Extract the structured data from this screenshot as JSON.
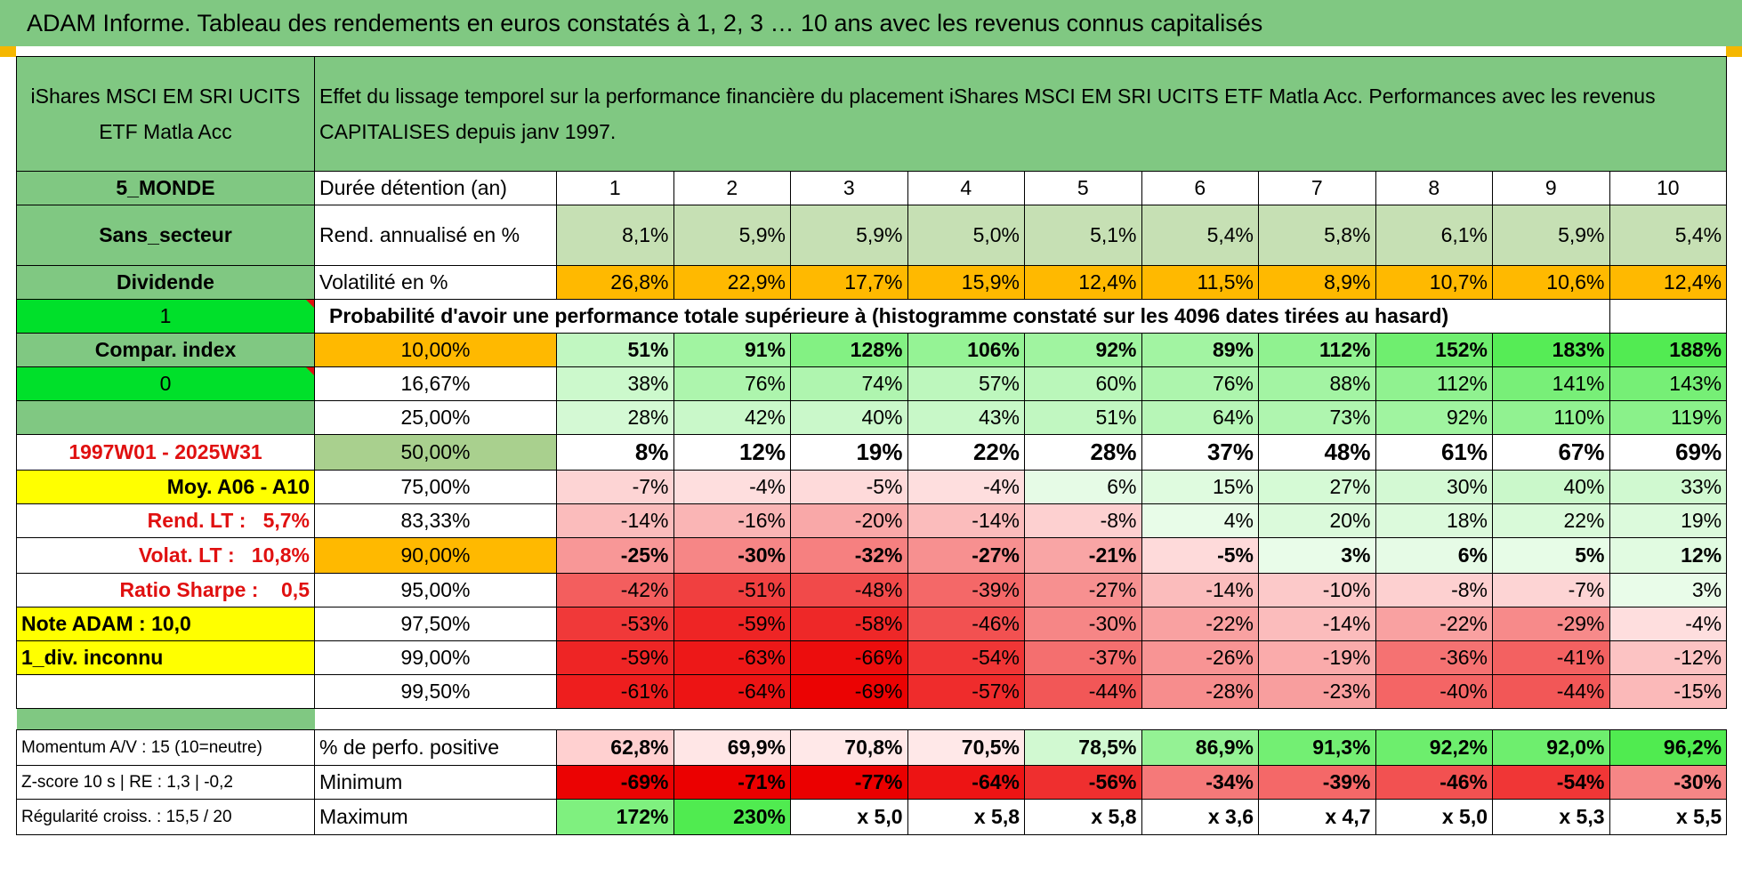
{
  "title": "ADAM Informe. Tableau des rendements en euros constatés à 1, 2, 3 … 10 ans avec les revenus connus capitalisés",
  "fund_name": "iShares MSCI EM SRI UCITS ETF Matla Acc",
  "header_desc": "Effet du lissage temporel sur la performance financière du placement iShares MSCI EM SRI UCITS ETF Matla Acc. Performances avec les revenus CAPITALISES depuis janv 1997.",
  "left_labels": {
    "region": "5_MONDE",
    "sector": "Sans_secteur",
    "dividend": "Dividende",
    "flag1": "1",
    "compar": "Compar. index",
    "flag0": "0",
    "period": "1997W01 - 2025W31",
    "moy": "Moy. A06 - A10",
    "rend_lt": "Rend. LT :   5,7%",
    "volat_lt": "Volat. LT :   10,8%",
    "sharpe": "Ratio Sharpe :    0,5",
    "note": "Note ADAM : 10,0",
    "div": "1_div. inconnu",
    "momentum": "Momentum A/V : 15 (10=neutre)",
    "zscore": "Z-score 10 s | RE : 1,3 | -0,2",
    "regularite": "Régularité croiss. : 15,5 / 20"
  },
  "row_labels": {
    "duree": "Durée détention (an)",
    "rend": "Rend. annualisé en %",
    "volat": "Volatilité en %",
    "proba": "Probabilité d'avoir une performance totale supérieure à (histogramme constaté sur les 4096 dates tirées au hasard)",
    "positive": "% de perfo. positive",
    "minimum": "Minimum",
    "maximum": "Maximum"
  },
  "years": [
    "1",
    "2",
    "3",
    "4",
    "5",
    "6",
    "7",
    "8",
    "9",
    "10"
  ],
  "rend": [
    "8,1%",
    "5,9%",
    "5,9%",
    "5,0%",
    "5,1%",
    "5,4%",
    "5,8%",
    "6,1%",
    "5,9%",
    "5,4%"
  ],
  "volat": [
    "26,8%",
    "22,9%",
    "17,7%",
    "15,9%",
    "12,4%",
    "11,5%",
    "8,9%",
    "10,7%",
    "10,6%",
    "12,4%"
  ],
  "quantiles": [
    {
      "p": "10,00%",
      "v": [
        "51%",
        "91%",
        "128%",
        "106%",
        "92%",
        "89%",
        "112%",
        "152%",
        "183%",
        "188%"
      ]
    },
    {
      "p": "16,67%",
      "v": [
        "38%",
        "76%",
        "74%",
        "57%",
        "60%",
        "76%",
        "88%",
        "112%",
        "141%",
        "143%"
      ]
    },
    {
      "p": "25,00%",
      "v": [
        "28%",
        "42%",
        "40%",
        "43%",
        "51%",
        "64%",
        "73%",
        "92%",
        "110%",
        "119%"
      ]
    },
    {
      "p": "50,00%",
      "v": [
        "8%",
        "12%",
        "19%",
        "22%",
        "28%",
        "37%",
        "48%",
        "61%",
        "67%",
        "69%"
      ]
    },
    {
      "p": "75,00%",
      "v": [
        "-7%",
        "-4%",
        "-5%",
        "-4%",
        "6%",
        "15%",
        "27%",
        "30%",
        "40%",
        "33%"
      ]
    },
    {
      "p": "83,33%",
      "v": [
        "-14%",
        "-16%",
        "-20%",
        "-14%",
        "-8%",
        "4%",
        "20%",
        "18%",
        "22%",
        "19%"
      ]
    },
    {
      "p": "90,00%",
      "v": [
        "-25%",
        "-30%",
        "-32%",
        "-27%",
        "-21%",
        "-5%",
        "3%",
        "6%",
        "5%",
        "12%"
      ]
    },
    {
      "p": "95,00%",
      "v": [
        "-42%",
        "-51%",
        "-48%",
        "-39%",
        "-27%",
        "-14%",
        "-10%",
        "-8%",
        "-7%",
        "3%"
      ]
    },
    {
      "p": "97,50%",
      "v": [
        "-53%",
        "-59%",
        "-58%",
        "-46%",
        "-30%",
        "-22%",
        "-14%",
        "-22%",
        "-29%",
        "-4%"
      ]
    },
    {
      "p": "99,00%",
      "v": [
        "-59%",
        "-63%",
        "-66%",
        "-54%",
        "-37%",
        "-26%",
        "-19%",
        "-36%",
        "-41%",
        "-12%"
      ]
    },
    {
      "p": "99,50%",
      "v": [
        "-61%",
        "-64%",
        "-69%",
        "-57%",
        "-44%",
        "-28%",
        "-23%",
        "-40%",
        "-44%",
        "-15%"
      ]
    }
  ],
  "positive": [
    "62,8%",
    "69,9%",
    "70,8%",
    "70,5%",
    "78,5%",
    "86,9%",
    "91,3%",
    "92,2%",
    "92,0%",
    "96,2%"
  ],
  "minimum": [
    "-69%",
    "-71%",
    "-77%",
    "-64%",
    "-56%",
    "-34%",
    "-39%",
    "-46%",
    "-54%",
    "-30%"
  ],
  "maximum": [
    "172%",
    "230%",
    "x 5,0",
    "x 5,8",
    "x 5,8",
    "x 3,6",
    "x 4,7",
    "x 5,0",
    "x 5,3",
    "x 5,5"
  ],
  "colors": {
    "header_green": "#80c882",
    "yellow": "#ffff00",
    "orange": "#ffb900",
    "lime": "#00e02a",
    "label_red": "#e01010"
  }
}
